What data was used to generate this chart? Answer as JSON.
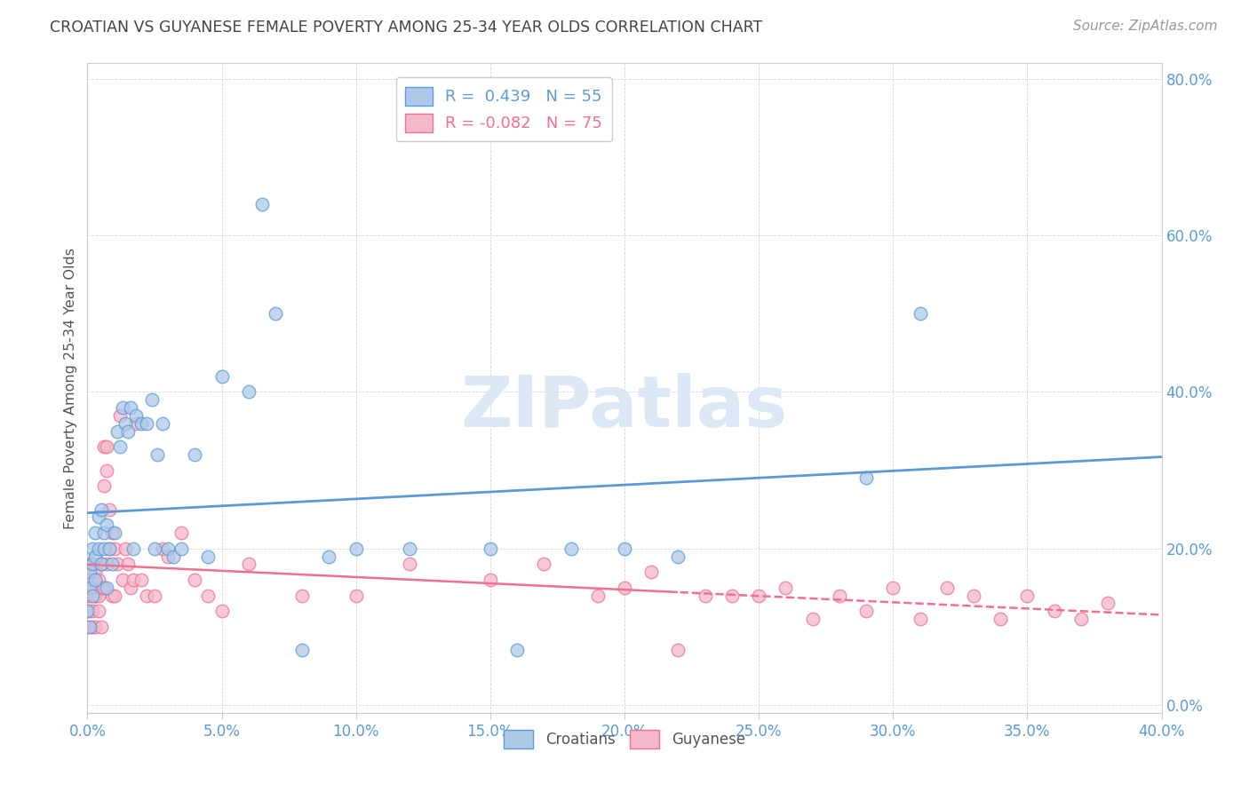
{
  "title": "CROATIAN VS GUYANESE FEMALE POVERTY AMONG 25-34 YEAR OLDS CORRELATION CHART",
  "source": "Source: ZipAtlas.com",
  "ylabel": "Female Poverty Among 25-34 Year Olds",
  "background_color": "#ffffff",
  "croatian_color": "#aec9e8",
  "guyanese_color": "#f5b8cb",
  "line_croatian": "#5b9bd5",
  "line_guyanese": "#f07090",
  "R_croatian": 0.439,
  "N_croatian": 55,
  "R_guyanese": -0.082,
  "N_guyanese": 75,
  "xlim": [
    0.0,
    0.4
  ],
  "ylim": [
    -0.02,
    0.82
  ],
  "plot_ylim": [
    0.0,
    0.82
  ],
  "xticks": [
    0.0,
    0.05,
    0.1,
    0.15,
    0.2,
    0.25,
    0.3,
    0.35,
    0.4
  ],
  "yticks": [
    0.0,
    0.2,
    0.4,
    0.6,
    0.8
  ],
  "croatian_x": [
    0.0,
    0.001,
    0.001,
    0.001,
    0.002,
    0.002,
    0.002,
    0.003,
    0.003,
    0.003,
    0.004,
    0.004,
    0.005,
    0.005,
    0.006,
    0.006,
    0.007,
    0.007,
    0.008,
    0.009,
    0.01,
    0.011,
    0.012,
    0.013,
    0.014,
    0.015,
    0.016,
    0.017,
    0.018,
    0.02,
    0.022,
    0.024,
    0.025,
    0.026,
    0.028,
    0.03,
    0.032,
    0.035,
    0.04,
    0.045,
    0.05,
    0.06,
    0.065,
    0.07,
    0.08,
    0.09,
    0.1,
    0.12,
    0.15,
    0.16,
    0.18,
    0.2,
    0.22,
    0.29,
    0.31
  ],
  "croatian_y": [
    0.12,
    0.15,
    0.1,
    0.17,
    0.14,
    0.18,
    0.2,
    0.16,
    0.19,
    0.22,
    0.2,
    0.24,
    0.18,
    0.25,
    0.22,
    0.2,
    0.15,
    0.23,
    0.2,
    0.18,
    0.22,
    0.35,
    0.33,
    0.38,
    0.36,
    0.35,
    0.38,
    0.2,
    0.37,
    0.36,
    0.36,
    0.39,
    0.2,
    0.32,
    0.36,
    0.2,
    0.19,
    0.2,
    0.32,
    0.19,
    0.42,
    0.4,
    0.64,
    0.5,
    0.07,
    0.19,
    0.2,
    0.2,
    0.2,
    0.07,
    0.2,
    0.2,
    0.19,
    0.29,
    0.5
  ],
  "guyanese_x": [
    0.0,
    0.0,
    0.001,
    0.001,
    0.001,
    0.001,
    0.002,
    0.002,
    0.002,
    0.002,
    0.003,
    0.003,
    0.003,
    0.003,
    0.004,
    0.004,
    0.004,
    0.005,
    0.005,
    0.005,
    0.006,
    0.006,
    0.006,
    0.007,
    0.007,
    0.007,
    0.008,
    0.008,
    0.009,
    0.009,
    0.01,
    0.01,
    0.011,
    0.012,
    0.013,
    0.014,
    0.015,
    0.016,
    0.017,
    0.018,
    0.02,
    0.022,
    0.025,
    0.028,
    0.03,
    0.035,
    0.04,
    0.045,
    0.05,
    0.06,
    0.08,
    0.1,
    0.12,
    0.15,
    0.17,
    0.19,
    0.2,
    0.21,
    0.22,
    0.23,
    0.24,
    0.25,
    0.26,
    0.27,
    0.28,
    0.29,
    0.3,
    0.31,
    0.32,
    0.33,
    0.34,
    0.35,
    0.36,
    0.37,
    0.38
  ],
  "guyanese_y": [
    0.14,
    0.1,
    0.18,
    0.14,
    0.12,
    0.16,
    0.1,
    0.18,
    0.12,
    0.15,
    0.14,
    0.17,
    0.1,
    0.14,
    0.16,
    0.12,
    0.14,
    0.1,
    0.18,
    0.15,
    0.33,
    0.28,
    0.15,
    0.3,
    0.33,
    0.18,
    0.25,
    0.2,
    0.22,
    0.14,
    0.14,
    0.2,
    0.18,
    0.37,
    0.16,
    0.2,
    0.18,
    0.15,
    0.16,
    0.36,
    0.16,
    0.14,
    0.14,
    0.2,
    0.19,
    0.22,
    0.16,
    0.14,
    0.12,
    0.18,
    0.14,
    0.14,
    0.18,
    0.16,
    0.18,
    0.14,
    0.15,
    0.17,
    0.07,
    0.14,
    0.14,
    0.14,
    0.15,
    0.11,
    0.14,
    0.12,
    0.15,
    0.11,
    0.15,
    0.14,
    0.11,
    0.14,
    0.12,
    0.11,
    0.13
  ],
  "watermark_text": "ZIPatlas",
  "watermark_color": "#dce8f5",
  "grid_color": "#cccccc",
  "tick_color": "#5b9bd5",
  "title_color": "#444444",
  "source_color": "#999999",
  "ylabel_color": "#555555",
  "legend_label_color": "#5b9bd5"
}
